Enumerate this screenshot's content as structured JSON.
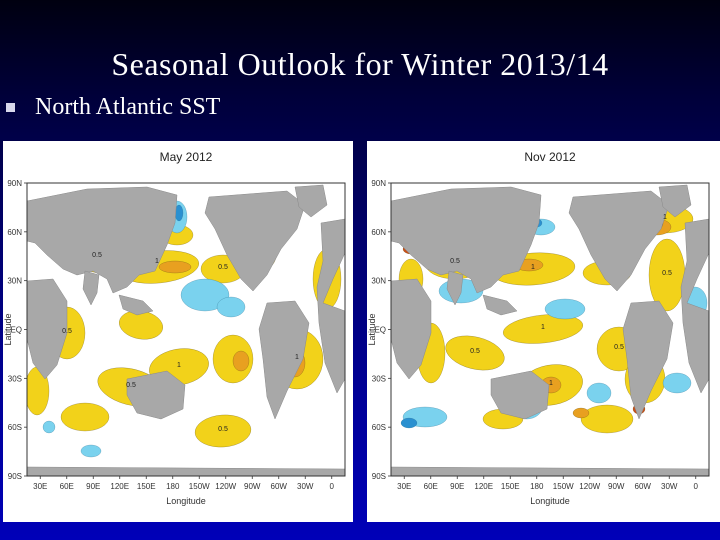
{
  "slide": {
    "title": "Seasonal Outlook for Winter 2013/14",
    "bullet": "North Atlantic SST"
  },
  "maps": [
    {
      "title": "May 2012",
      "xlabel": "Longitude",
      "ylabel": "Latitude",
      "xticks": [
        "30E",
        "60E",
        "90E",
        "120E",
        "150E",
        "180",
        "150W",
        "120W",
        "90W",
        "60W",
        "30W",
        "0"
      ],
      "yticks": [
        "90N",
        "60N",
        "30N",
        "EQ",
        "30S",
        "60S",
        "90S"
      ]
    },
    {
      "title": "Nov 2012",
      "xlabel": "Longitude",
      "ylabel": "Latitude",
      "xticks": [
        "30E",
        "60E",
        "90E",
        "120E",
        "150E",
        "180",
        "150W",
        "120W",
        "90W",
        "60W",
        "30W",
        "0"
      ],
      "yticks": [
        "90N",
        "60N",
        "30N",
        "EQ",
        "30S",
        "60S",
        "90S"
      ]
    }
  ],
  "colors": {
    "warm_light": "#f2d21a",
    "warm_mid": "#e8a020",
    "warm_strong": "#c8501a",
    "cool_light": "#7ad2ee",
    "cool_strong": "#2a90d0",
    "land": "#a8a8a8"
  }
}
